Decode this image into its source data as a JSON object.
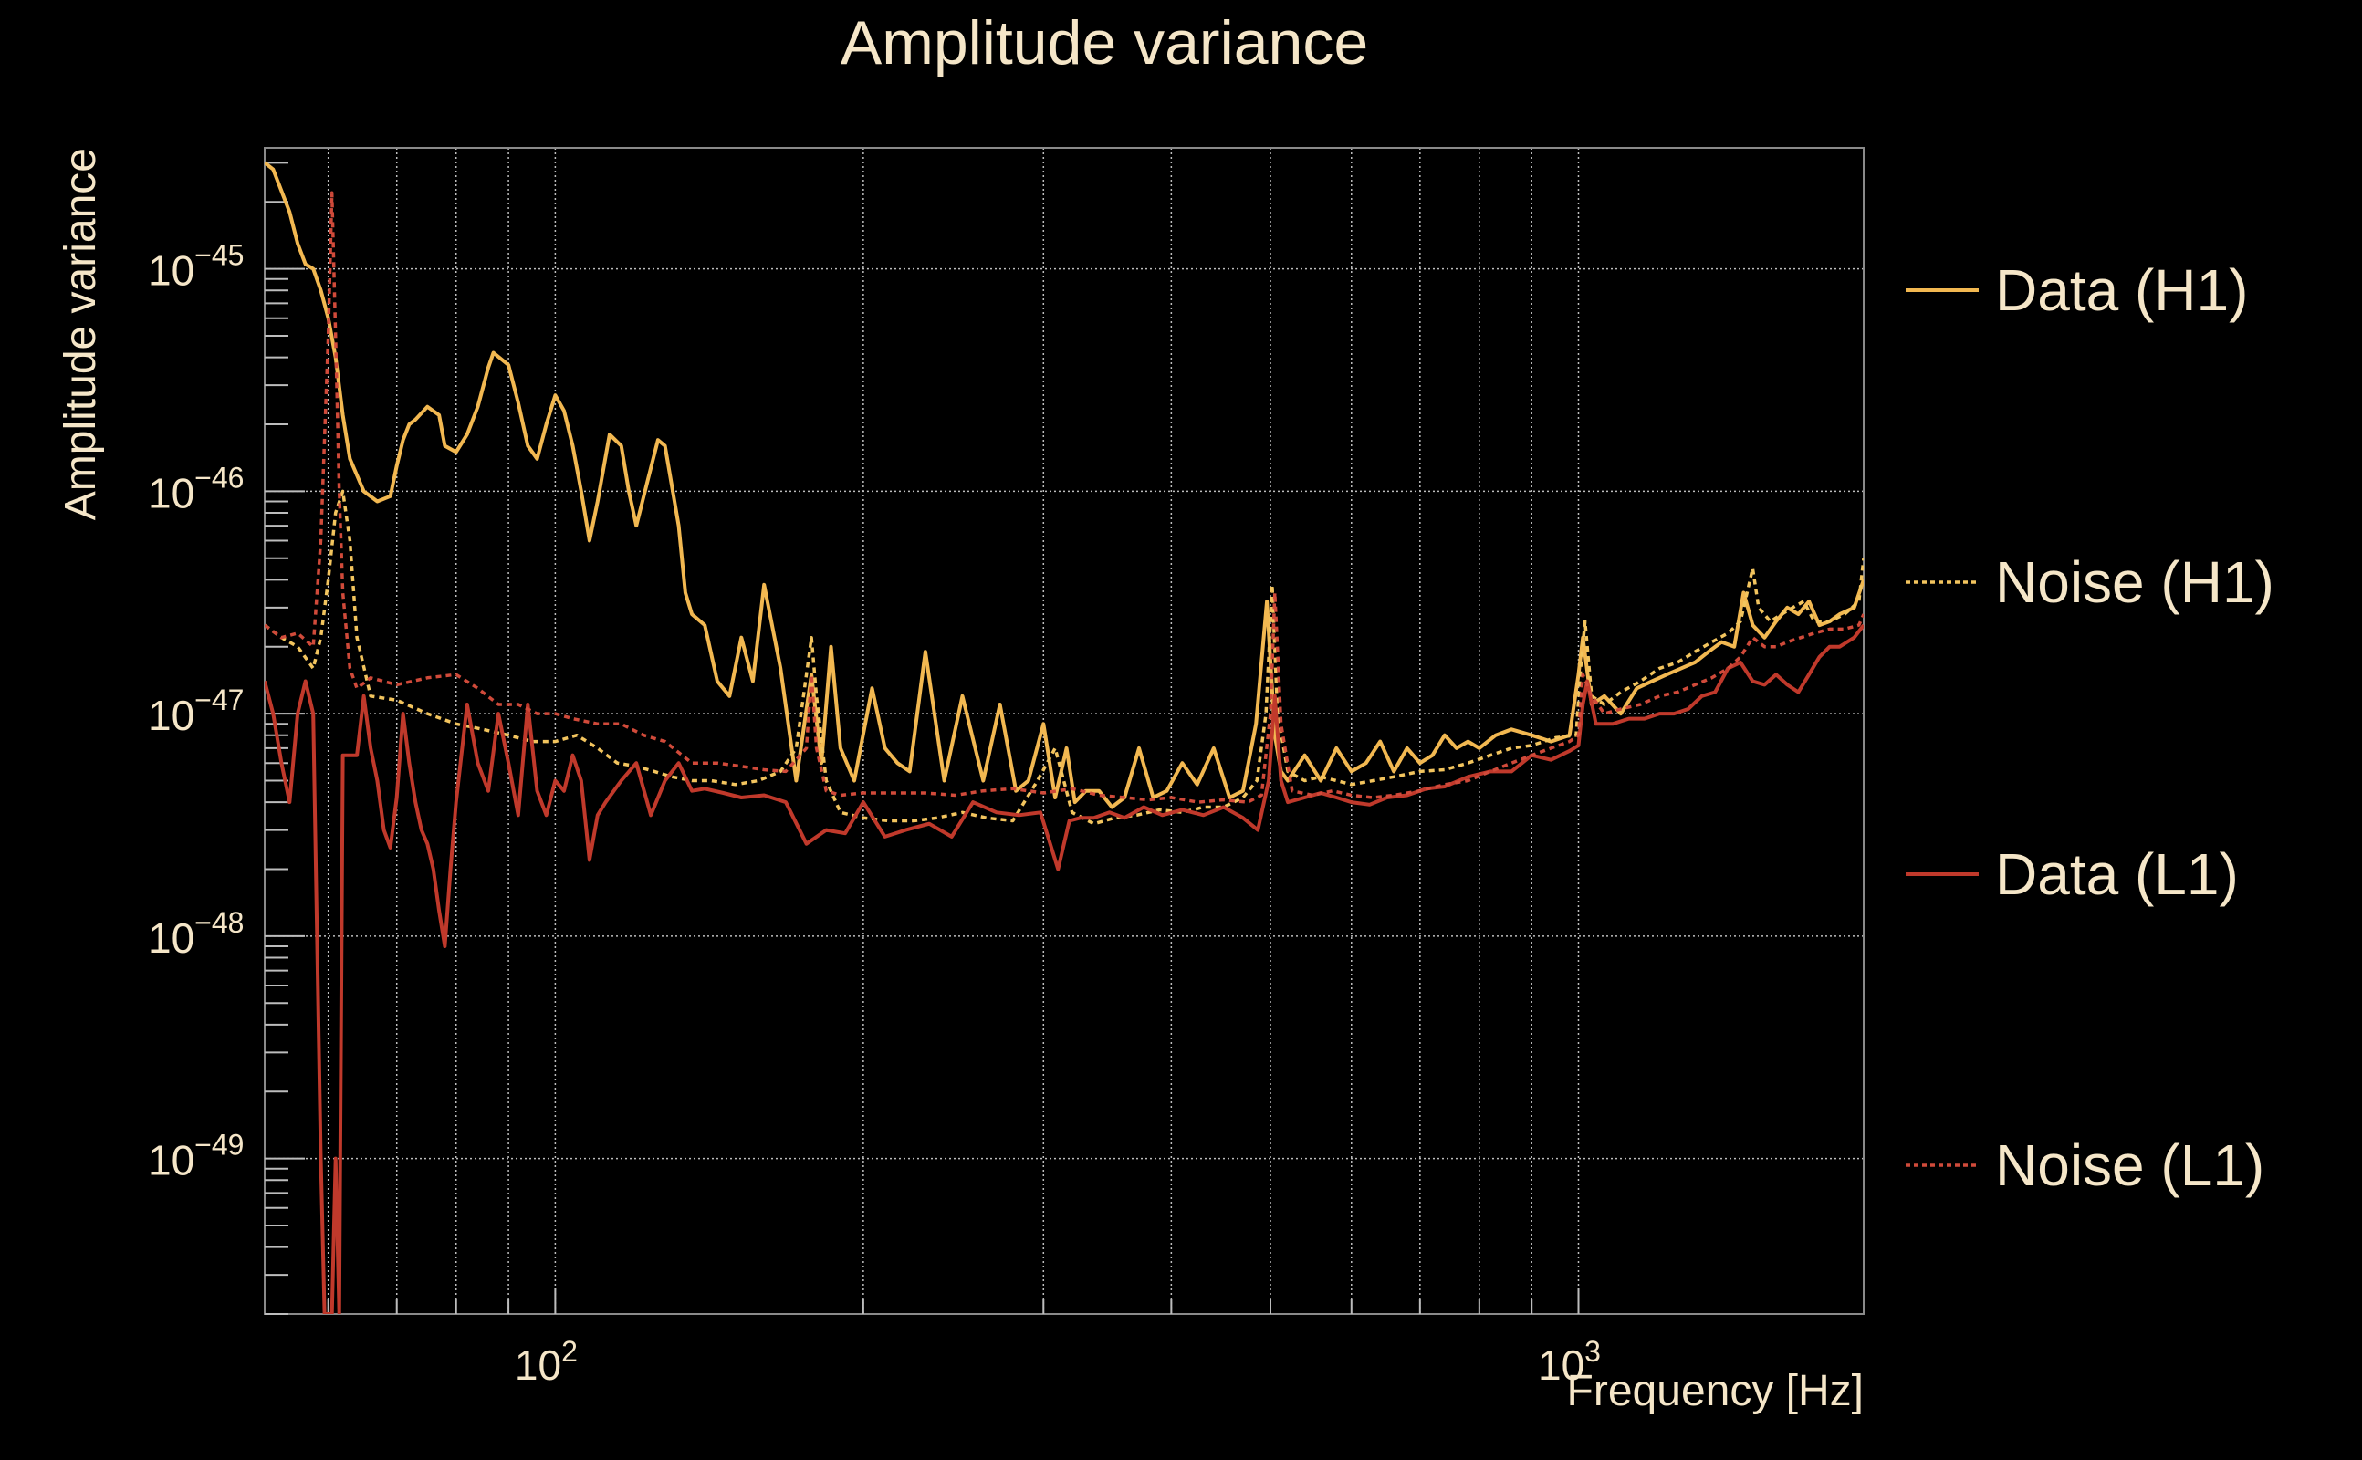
{
  "chart_data": {
    "type": "line",
    "title": "Amplitude variance",
    "xlabel": "Frequency [Hz]",
    "ylabel": "Amplitude variance",
    "xscale": "log",
    "yscale": "log",
    "xlim": [
      52,
      1900
    ],
    "ylim": [
      2e-50,
      3.5e-45
    ],
    "grid": true,
    "legend_position": "right",
    "x_tick_labels": [
      {
        "value": 100,
        "label": "10",
        "exp": "2"
      },
      {
        "value": 1000,
        "label": "10",
        "exp": "3"
      }
    ],
    "y_tick_labels": [
      {
        "value": 1e-45,
        "label": "10",
        "exp": "−45"
      },
      {
        "value": 1e-46,
        "label": "10",
        "exp": "−46"
      },
      {
        "value": 1e-47,
        "label": "10",
        "exp": "−47"
      },
      {
        "value": 1e-48,
        "label": "10",
        "exp": "−48"
      },
      {
        "value": 1e-49,
        "label": "10",
        "exp": "−49"
      }
    ],
    "series": [
      {
        "name": "Data (H1)",
        "color": "#f2b851",
        "style": "solid",
        "x": [
          52,
          53,
          55,
          56,
          57,
          58,
          59,
          60,
          61,
          62,
          63,
          65,
          67,
          69,
          70,
          71,
          72,
          73,
          75,
          77,
          78,
          80,
          82,
          84,
          86,
          87,
          90,
          92,
          94,
          96,
          98,
          100,
          102,
          104,
          106,
          108,
          110,
          113,
          116,
          118,
          120,
          123,
          126,
          128,
          132,
          134,
          136,
          140,
          144,
          148,
          152,
          156,
          160,
          166,
          172,
          178,
          182,
          186,
          190,
          196,
          204,
          210,
          216,
          222,
          230,
          240,
          250,
          262,
          272,
          282,
          290,
          300,
          308,
          316,
          322,
          330,
          340,
          350,
          360,
          372,
          384,
          396,
          410,
          424,
          440,
          456,
          470,
          484,
          496,
          505,
          512,
          520,
          540,
          560,
          580,
          600,
          620,
          640,
          660,
          680,
          700,
          720,
          740,
          760,
          780,
          800,
          830,
          860,
          900,
          940,
          980,
          1000,
          1010,
          1030,
          1060,
          1100,
          1140,
          1180,
          1220,
          1260,
          1300,
          1340,
          1380,
          1420,
          1450,
          1480,
          1520,
          1560,
          1600,
          1640,
          1680,
          1720,
          1760,
          1800,
          1860,
          1900
        ],
        "y": [
          3e-45,
          2.8e-45,
          1.8e-45,
          1.3e-45,
          1.05e-45,
          1e-45,
          8e-46,
          6e-46,
          4e-46,
          2.2e-46,
          1.4e-46,
          1e-46,
          9e-47,
          9.5e-47,
          1.3e-46,
          1.7e-46,
          2e-46,
          2.1e-46,
          2.4e-46,
          2.2e-46,
          1.6e-46,
          1.5e-46,
          1.8e-46,
          2.4e-46,
          3.6e-46,
          4.2e-46,
          3.7e-46,
          2.5e-46,
          1.6e-46,
          1.4e-46,
          2e-46,
          2.7e-46,
          2.3e-46,
          1.6e-46,
          1e-46,
          6e-47,
          9e-47,
          1.8e-46,
          1.6e-46,
          1e-46,
          7e-47,
          1.1e-46,
          1.7e-46,
          1.6e-46,
          7e-47,
          3.5e-47,
          2.8e-47,
          2.5e-47,
          1.4e-47,
          1.2e-47,
          2.2e-47,
          1.4e-47,
          3.8e-47,
          1.6e-47,
          5e-48,
          1.5e-47,
          6e-48,
          2e-47,
          7e-48,
          5e-48,
          1.3e-47,
          7e-48,
          6e-48,
          5.5e-48,
          1.9e-47,
          5e-48,
          1.2e-47,
          5e-48,
          1.1e-47,
          4.5e-48,
          5e-48,
          9e-48,
          4.2e-48,
          7e-48,
          4e-48,
          4.5e-48,
          4.5e-48,
          3.8e-48,
          4.2e-48,
          7e-48,
          4.2e-48,
          4.5e-48,
          6e-48,
          4.8e-48,
          7e-48,
          4.2e-48,
          4.5e-48,
          9e-48,
          3.2e-47,
          8e-48,
          5.5e-48,
          5e-48,
          6.5e-48,
          5e-48,
          7e-48,
          5.5e-48,
          6e-48,
          7.5e-48,
          5.5e-48,
          7e-48,
          6e-48,
          6.5e-48,
          8e-48,
          7e-48,
          7.5e-48,
          7e-48,
          8e-48,
          8.5e-48,
          8e-48,
          7.5e-48,
          8e-48,
          1.5e-47,
          2.2e-47,
          1.1e-47,
          1.2e-47,
          1e-47,
          1.3e-47,
          1.4e-47,
          1.5e-47,
          1.6e-47,
          1.7e-47,
          1.9e-47,
          2.1e-47,
          2e-47,
          3.5e-47,
          2.5e-47,
          2.2e-47,
          2.6e-47,
          3e-47,
          2.8e-47,
          3.2e-47,
          2.5e-47,
          2.6e-47,
          2.8e-47,
          3e-47,
          4e-47
        ]
      },
      {
        "name": "Noise (H1)",
        "color": "#f2c45e",
        "style": "dotted",
        "x": [
          52,
          54,
          56,
          58,
          59,
          60,
          61,
          62,
          63,
          64,
          66,
          70,
          75,
          80,
          85,
          90,
          95,
          100,
          105,
          110,
          115,
          120,
          125,
          130,
          136,
          142,
          150,
          158,
          166,
          172,
          176,
          178,
          180,
          184,
          190,
          200,
          212,
          224,
          236,
          250,
          264,
          280,
          296,
          308,
          320,
          336,
          352,
          370,
          390,
          410,
          430,
          450,
          470,
          485,
          495,
          502,
          508,
          520,
          540,
          560,
          580,
          600,
          630,
          660,
          700,
          740,
          780,
          820,
          860,
          900,
          950,
          995,
          1005,
          1015,
          1030,
          1060,
          1100,
          1150,
          1200,
          1250,
          1300,
          1350,
          1400,
          1440,
          1480,
          1500,
          1540,
          1580,
          1620,
          1660,
          1700,
          1760,
          1820,
          1880,
          1900
        ],
        "y": [
          2.5e-47,
          2.2e-47,
          2e-47,
          1.6e-47,
          2.2e-47,
          4e-47,
          8e-47,
          1e-46,
          6e-47,
          2.2e-47,
          1.2e-47,
          1.15e-47,
          1e-47,
          9e-48,
          8.5e-48,
          8e-48,
          7.5e-48,
          7.5e-48,
          8e-48,
          7e-48,
          6e-48,
          5.8e-48,
          5.5e-48,
          5.2e-48,
          5e-48,
          5e-48,
          4.8e-48,
          5e-48,
          5.5e-48,
          7e-48,
          1.5e-47,
          2.2e-47,
          1.2e-47,
          5e-48,
          3.6e-48,
          3.4e-48,
          3.3e-48,
          3.3e-48,
          3.4e-48,
          3.6e-48,
          3.4e-48,
          3.3e-48,
          5e-48,
          7e-48,
          3.6e-48,
          3.2e-48,
          3.4e-48,
          3.5e-48,
          3.7e-48,
          3.6e-48,
          3.8e-48,
          3.8e-48,
          4.2e-48,
          5e-48,
          1e-47,
          3.8e-47,
          1e-47,
          5.5e-48,
          5e-48,
          5.2e-48,
          5e-48,
          4.8e-48,
          5e-48,
          5.2e-48,
          5.5e-48,
          5.6e-48,
          6e-48,
          6.5e-48,
          7e-48,
          7.2e-48,
          7.8e-48,
          8e-48,
          1.6e-47,
          2.6e-47,
          1.2e-47,
          1.1e-47,
          1.25e-47,
          1.4e-47,
          1.6e-47,
          1.7e-47,
          1.9e-47,
          2.1e-47,
          2.3e-47,
          2.6e-47,
          4.5e-47,
          3e-47,
          2.6e-47,
          2.8e-47,
          3e-47,
          3.2e-47,
          2.6e-47,
          2.6e-47,
          2.8e-47,
          3.2e-47,
          5e-47
        ]
      },
      {
        "name": "Data (L1)",
        "color": "#c0392b",
        "style": "solid",
        "x": [
          52,
          53,
          54,
          55,
          56,
          57,
          58,
          59,
          59.5,
          60.5,
          61,
          61.5,
          62,
          63,
          64,
          65,
          66,
          67,
          68,
          69,
          70,
          71,
          72,
          73,
          74,
          75,
          76,
          77,
          78,
          79,
          80,
          82,
          84,
          86,
          88,
          90,
          92,
          94,
          96,
          98,
          100,
          102,
          104,
          106,
          108,
          110,
          112,
          116,
          120,
          124,
          128,
          132,
          136,
          140,
          146,
          152,
          160,
          168,
          176,
          184,
          192,
          200,
          210,
          220,
          232,
          244,
          256,
          270,
          284,
          298,
          310,
          318,
          326,
          336,
          348,
          360,
          376,
          392,
          410,
          430,
          450,
          470,
          486,
          498,
          505,
          512,
          520,
          540,
          560,
          580,
          600,
          625,
          650,
          680,
          710,
          740,
          780,
          820,
          860,
          900,
          940,
          980,
          1000,
          1010,
          1020,
          1040,
          1080,
          1120,
          1160,
          1200,
          1240,
          1280,
          1320,
          1360,
          1400,
          1440,
          1480,
          1520,
          1560,
          1600,
          1640,
          1680,
          1720,
          1760,
          1800,
          1860,
          1900
        ],
        "y": [
          1.4e-47,
          1e-47,
          6e-48,
          4e-48,
          1e-47,
          1.4e-47,
          1e-47,
          1e-49,
          2e-50,
          2e-50,
          1e-49,
          2e-50,
          6.5e-48,
          6.5e-48,
          6.5e-48,
          1.2e-47,
          7e-48,
          5e-48,
          3e-48,
          2.5e-48,
          4.2e-48,
          1e-47,
          6e-48,
          4e-48,
          3e-48,
          2.6e-48,
          2e-48,
          1.3e-48,
          9e-49,
          2e-48,
          4e-48,
          1.1e-47,
          6e-48,
          4.5e-48,
          1e-47,
          6e-48,
          3.5e-48,
          1.1e-47,
          4.5e-48,
          3.5e-48,
          5e-48,
          4.5e-48,
          6.5e-48,
          5e-48,
          2.2e-48,
          3.5e-48,
          4e-48,
          5e-48,
          6e-48,
          3.5e-48,
          5e-48,
          6e-48,
          4.5e-48,
          4.6e-48,
          4.4e-48,
          4.2e-48,
          4.3e-48,
          4e-48,
          2.6e-48,
          3e-48,
          2.9e-48,
          4e-48,
          2.8e-48,
          3e-48,
          3.2e-48,
          2.8e-48,
          4e-48,
          3.6e-48,
          3.5e-48,
          3.6e-48,
          2e-48,
          3.3e-48,
          3.4e-48,
          3.4e-48,
          3.6e-48,
          3.4e-48,
          3.8e-48,
          3.5e-48,
          3.7e-48,
          3.5e-48,
          3.8e-48,
          3.4e-48,
          3e-48,
          5e-48,
          1.2e-47,
          5e-48,
          4e-48,
          4.2e-48,
          4.4e-48,
          4.2e-48,
          4e-48,
          3.9e-48,
          4.2e-48,
          4.3e-48,
          4.6e-48,
          4.7e-48,
          5.2e-48,
          5.5e-48,
          5.5e-48,
          6.5e-48,
          6.2e-48,
          6.8e-48,
          7.2e-48,
          1.1e-47,
          1.4e-47,
          9e-48,
          9e-48,
          9.5e-48,
          9.5e-48,
          1e-47,
          1e-47,
          1.05e-47,
          1.2e-47,
          1.25e-47,
          1.6e-47,
          1.7e-47,
          1.4e-47,
          1.35e-47,
          1.5e-47,
          1.35e-47,
          1.25e-47,
          1.5e-47,
          1.8e-47,
          2e-47,
          2e-47,
          2.2e-47,
          2.5e-47
        ]
      },
      {
        "name": "Noise (L1)",
        "color": "#d04a3a",
        "style": "dotted",
        "x": [
          52,
          54,
          56,
          58,
          59,
          60,
          60.5,
          61,
          61.5,
          62,
          63,
          64,
          66,
          70,
          75,
          80,
          84,
          88,
          92,
          96,
          100,
          104,
          110,
          116,
          122,
          128,
          136,
          144,
          152,
          160,
          168,
          176,
          178,
          180,
          184,
          190,
          200,
          214,
          230,
          246,
          262,
          280,
          300,
          320,
          340,
          360,
          380,
          400,
          425,
          450,
          475,
          490,
          500,
          505,
          512,
          525,
          550,
          575,
          600,
          630,
          660,
          700,
          740,
          780,
          820,
          860,
          900,
          940,
          980,
          1000,
          1010,
          1030,
          1060,
          1100,
          1150,
          1200,
          1250,
          1300,
          1350,
          1400,
          1440,
          1480,
          1520,
          1560,
          1600,
          1650,
          1700,
          1760,
          1820,
          1880,
          1900
        ],
        "y": [
          2.5e-47,
          2.2e-47,
          2.3e-47,
          2e-47,
          6e-47,
          5e-46,
          2.2e-45,
          5e-46,
          1e-46,
          3.5e-47,
          1.6e-47,
          1.3e-47,
          1.45e-47,
          1.35e-47,
          1.45e-47,
          1.5e-47,
          1.3e-47,
          1.1e-47,
          1.1e-47,
          1e-47,
          1e-47,
          9.5e-48,
          9e-48,
          9e-48,
          8e-48,
          7.5e-48,
          6e-48,
          6e-48,
          5.8e-48,
          5.6e-48,
          5.5e-48,
          7e-48,
          1.5e-47,
          7e-48,
          4.5e-48,
          4.3e-48,
          4.4e-48,
          4.4e-48,
          4.4e-48,
          4.3e-48,
          4.5e-48,
          4.6e-48,
          4.4e-48,
          4.6e-48,
          4.3e-48,
          4.2e-48,
          4.1e-48,
          4.2e-48,
          4e-48,
          4.1e-48,
          4e-48,
          4.3e-48,
          1e-47,
          3.5e-47,
          9e-48,
          4.5e-48,
          4.3e-48,
          4.5e-48,
          4.3e-48,
          4.2e-48,
          4.3e-48,
          4.5e-48,
          4.8e-48,
          5e-48,
          5.5e-48,
          6e-48,
          6.5e-48,
          7e-48,
          7.5e-48,
          8e-48,
          1.5e-47,
          1.2e-47,
          1e-47,
          1.05e-47,
          1.1e-47,
          1.2e-47,
          1.25e-47,
          1.35e-47,
          1.45e-47,
          1.6e-47,
          1.8e-47,
          2.2e-47,
          2e-47,
          2e-47,
          2.1e-47,
          2.2e-47,
          2.3e-47,
          2.4e-47,
          2.4e-47,
          2.5e-47,
          2.8e-47
        ]
      }
    ]
  }
}
